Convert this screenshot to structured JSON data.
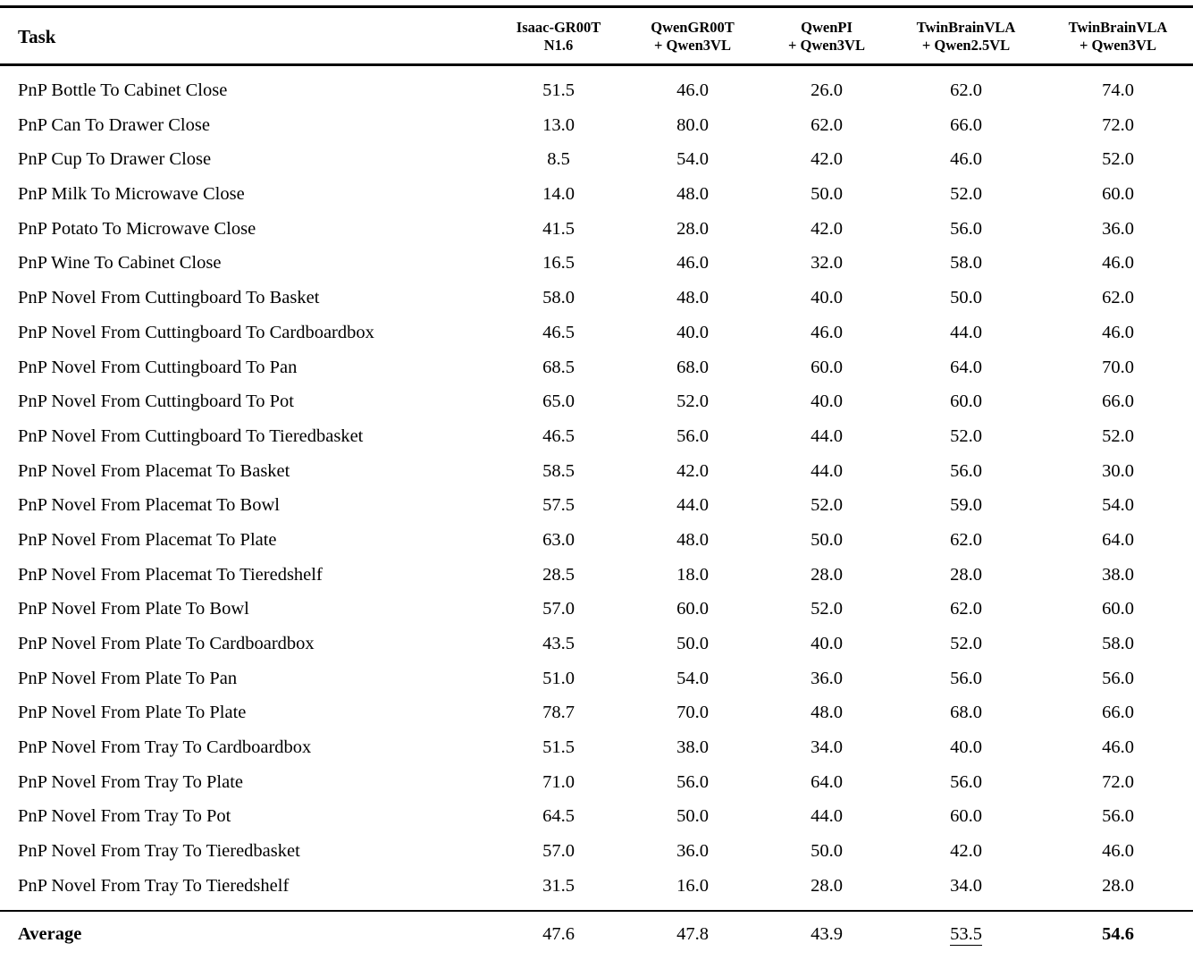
{
  "table": {
    "task_header": "Task",
    "columns": [
      {
        "line1": "Isaac-GR00T",
        "line2": "N1.6"
      },
      {
        "line1": "QwenGR00T",
        "line2": "+ Qwen3VL"
      },
      {
        "line1": "QwenPI",
        "line2": "+ Qwen3VL"
      },
      {
        "line1": "TwinBrainVLA",
        "line2": "+ Qwen2.5VL"
      },
      {
        "line1": "TwinBrainVLA",
        "line2": "+ Qwen3VL"
      }
    ],
    "rows": [
      {
        "task": "PnP Bottle To Cabinet Close",
        "values": [
          "51.5",
          "46.0",
          "26.0",
          "62.0",
          "74.0"
        ]
      },
      {
        "task": "PnP Can To Drawer Close",
        "values": [
          "13.0",
          "80.0",
          "62.0",
          "66.0",
          "72.0"
        ]
      },
      {
        "task": "PnP Cup To Drawer Close",
        "values": [
          "8.5",
          "54.0",
          "42.0",
          "46.0",
          "52.0"
        ]
      },
      {
        "task": "PnP Milk To Microwave Close",
        "values": [
          "14.0",
          "48.0",
          "50.0",
          "52.0",
          "60.0"
        ]
      },
      {
        "task": "PnP Potato To Microwave Close",
        "values": [
          "41.5",
          "28.0",
          "42.0",
          "56.0",
          "36.0"
        ]
      },
      {
        "task": "PnP Wine To Cabinet Close",
        "values": [
          "16.5",
          "46.0",
          "32.0",
          "58.0",
          "46.0"
        ]
      },
      {
        "task": "PnP Novel From Cuttingboard To Basket",
        "values": [
          "58.0",
          "48.0",
          "40.0",
          "50.0",
          "62.0"
        ]
      },
      {
        "task": "PnP Novel From Cuttingboard To Cardboardbox",
        "values": [
          "46.5",
          "40.0",
          "46.0",
          "44.0",
          "46.0"
        ]
      },
      {
        "task": "PnP Novel From Cuttingboard To Pan",
        "values": [
          "68.5",
          "68.0",
          "60.0",
          "64.0",
          "70.0"
        ]
      },
      {
        "task": "PnP Novel From Cuttingboard To Pot",
        "values": [
          "65.0",
          "52.0",
          "40.0",
          "60.0",
          "66.0"
        ]
      },
      {
        "task": "PnP Novel From Cuttingboard To Tieredbasket",
        "values": [
          "46.5",
          "56.0",
          "44.0",
          "52.0",
          "52.0"
        ]
      },
      {
        "task": "PnP Novel From Placemat To Basket",
        "values": [
          "58.5",
          "42.0",
          "44.0",
          "56.0",
          "30.0"
        ]
      },
      {
        "task": "PnP Novel From Placemat To Bowl",
        "values": [
          "57.5",
          "44.0",
          "52.0",
          "59.0",
          "54.0"
        ]
      },
      {
        "task": "PnP Novel From Placemat To Plate",
        "values": [
          "63.0",
          "48.0",
          "50.0",
          "62.0",
          "64.0"
        ]
      },
      {
        "task": "PnP Novel From Placemat To Tieredshelf",
        "values": [
          "28.5",
          "18.0",
          "28.0",
          "28.0",
          "38.0"
        ]
      },
      {
        "task": "PnP Novel From Plate To Bowl",
        "values": [
          "57.0",
          "60.0",
          "52.0",
          "62.0",
          "60.0"
        ]
      },
      {
        "task": "PnP Novel From Plate To Cardboardbox",
        "values": [
          "43.5",
          "50.0",
          "40.0",
          "52.0",
          "58.0"
        ]
      },
      {
        "task": "PnP Novel From Plate To Pan",
        "values": [
          "51.0",
          "54.0",
          "36.0",
          "56.0",
          "56.0"
        ]
      },
      {
        "task": "PnP Novel From Plate To Plate",
        "values": [
          "78.7",
          "70.0",
          "48.0",
          "68.0",
          "66.0"
        ]
      },
      {
        "task": "PnP Novel From Tray To Cardboardbox",
        "values": [
          "51.5",
          "38.0",
          "34.0",
          "40.0",
          "46.0"
        ]
      },
      {
        "task": "PnP Novel From Tray To Plate",
        "values": [
          "71.0",
          "56.0",
          "64.0",
          "56.0",
          "72.0"
        ]
      },
      {
        "task": "PnP Novel From Tray To Pot",
        "values": [
          "64.5",
          "50.0",
          "44.0",
          "60.0",
          "56.0"
        ]
      },
      {
        "task": "PnP Novel From Tray To Tieredbasket",
        "values": [
          "57.0",
          "36.0",
          "50.0",
          "42.0",
          "46.0"
        ]
      },
      {
        "task": "PnP Novel From Tray To Tieredshelf",
        "values": [
          "31.5",
          "16.0",
          "28.0",
          "34.0",
          "28.0"
        ]
      }
    ],
    "footer": {
      "label": "Average",
      "values": [
        "47.6",
        "47.8",
        "43.9",
        "53.5",
        "54.6"
      ],
      "underline_index": 3,
      "bold_index": 4
    },
    "colors": {
      "text": "#000000",
      "background": "#ffffff",
      "rule": "#000000"
    }
  }
}
